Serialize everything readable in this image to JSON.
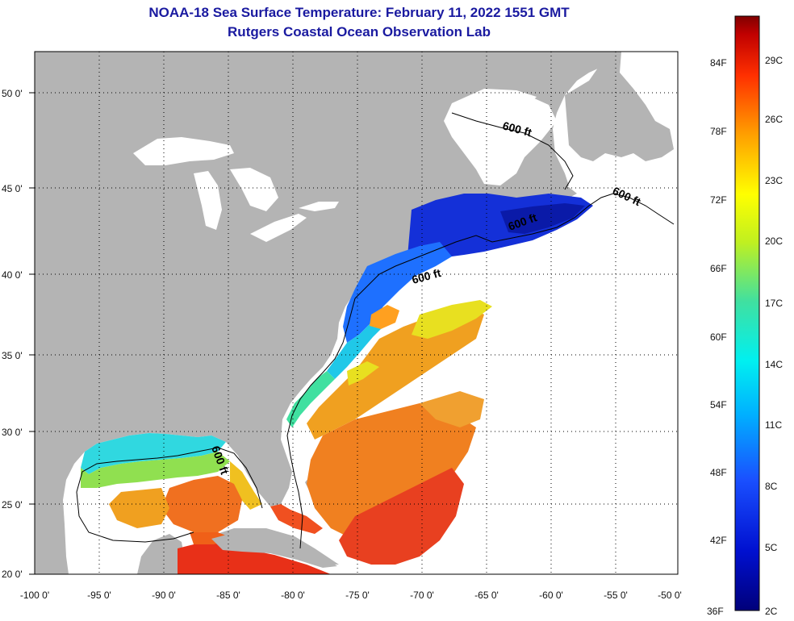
{
  "title": "NOAA-18 Sea Surface Temperature:  February 11, 2022 1551 GMT",
  "subtitle": "Rutgers Coastal Ocean Observation Lab",
  "lat_ticks": [
    "50 0'",
    "45 0'",
    "40 0'",
    "35 0'",
    "30 0'",
    "25 0'",
    "20 0'"
  ],
  "lon_ticks": [
    "-100 0'",
    "-95 0'",
    "-90 0'",
    "-85 0'",
    "-80 0'",
    "-75 0'",
    "-70 0'",
    "-65 0'",
    "-60 0'",
    "-55 0'",
    "-50 0'"
  ],
  "contour_labels": [
    "600 ft",
    "600 ft",
    "600 ft",
    "600 ft",
    "600 ft"
  ],
  "colorbar": {
    "fahrenheit": [
      "84F",
      "78F",
      "72F",
      "66F",
      "60F",
      "54F",
      "48F",
      "42F",
      "36F"
    ],
    "celsius": [
      "29C",
      "26C",
      "23C",
      "20C",
      "17C",
      "14C",
      "11C",
      "8C",
      "5C",
      "2C"
    ]
  },
  "colors": {
    "land": "#b4b4b4",
    "no_data": "#ffffff",
    "title": "#1a1aa0",
    "cold": "#0a1a9a",
    "warm": "#e8301a"
  }
}
